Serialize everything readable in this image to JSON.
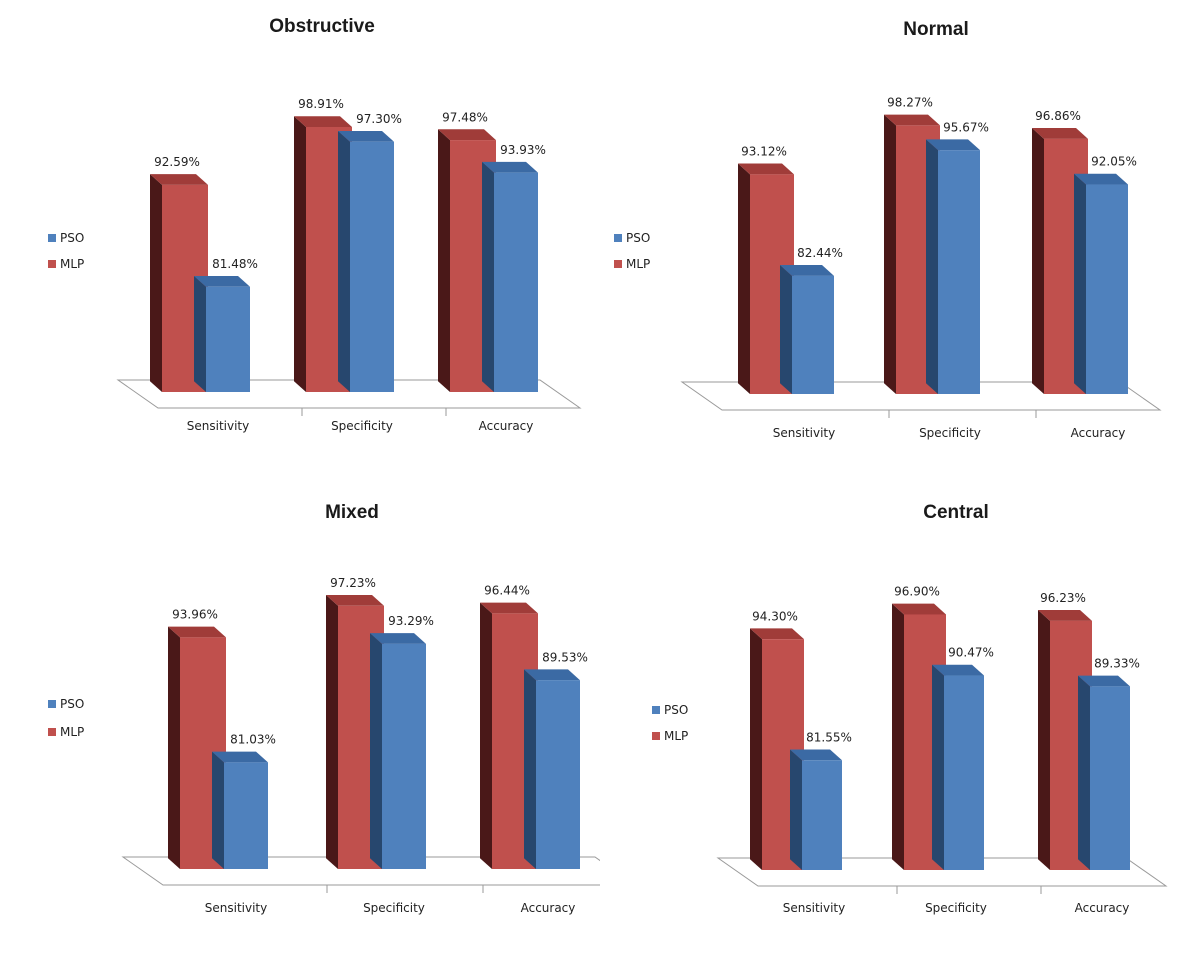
{
  "colors": {
    "MLP": "#c0504d",
    "MLP_side": "#4a1818",
    "MLP_top": "#a03c39",
    "PSO": "#4f81bd",
    "PSO_side": "#27476e",
    "PSO_top": "#3b6aa4",
    "floor": "#ffffff",
    "floor_stroke": "#9a9a9a"
  },
  "chart_data": [
    {
      "type": "bar",
      "title": "Obstructive",
      "categories": [
        "Sensitivity",
        "Specificity",
        "Accuracy"
      ],
      "series": [
        {
          "name": "MLP",
          "values": [
            92.59,
            98.91,
            97.48
          ],
          "labels": [
            "92.59%",
            "98.91%",
            "97.48%"
          ]
        },
        {
          "name": "PSO",
          "values": [
            81.48,
            97.3,
            93.93
          ],
          "labels": [
            "81.48%",
            "97.30%",
            "93.93%"
          ]
        }
      ],
      "legend": [
        "PSO",
        "MLP"
      ],
      "legend_position": "left"
    },
    {
      "type": "bar",
      "title": "Normal",
      "categories": [
        "Sensitivity",
        "Specificity",
        "Accuracy"
      ],
      "series": [
        {
          "name": "MLP",
          "values": [
            93.12,
            98.27,
            96.86
          ],
          "labels": [
            "93.12%",
            "98.27%",
            "96.86%"
          ]
        },
        {
          "name": "PSO",
          "values": [
            82.44,
            95.67,
            92.05
          ],
          "labels": [
            "82.44%",
            "95.67%",
            "92.05%"
          ]
        }
      ],
      "legend": [
        "PSO",
        "MLP"
      ],
      "legend_position": "left"
    },
    {
      "type": "bar",
      "title": "Mixed",
      "categories": [
        "Sensitivity",
        "Specificity",
        "Accuracy"
      ],
      "series": [
        {
          "name": "MLP",
          "values": [
            93.96,
            97.23,
            96.44
          ],
          "labels": [
            "93.96%",
            "97.23%",
            "96.44%"
          ]
        },
        {
          "name": "PSO",
          "values": [
            81.03,
            93.29,
            89.53
          ],
          "labels": [
            "81.03%",
            "93.29%",
            "89.53%"
          ]
        }
      ],
      "legend": [
        "PSO",
        "MLP"
      ],
      "legend_position": "left"
    },
    {
      "type": "bar",
      "title": "Central",
      "categories": [
        "Sensitivity",
        "Specificity",
        "Accuracy"
      ],
      "series": [
        {
          "name": "MLP",
          "values": [
            94.3,
            96.9,
            96.23
          ],
          "labels": [
            "94.30%",
            "96.90%",
            "96.23%"
          ]
        },
        {
          "name": "PSO",
          "values": [
            81.55,
            90.47,
            89.33
          ],
          "labels": [
            "81.55%",
            "90.47%",
            "89.33%"
          ]
        }
      ],
      "legend": [
        "PSO",
        "MLP"
      ],
      "legend_position": "left"
    }
  ]
}
